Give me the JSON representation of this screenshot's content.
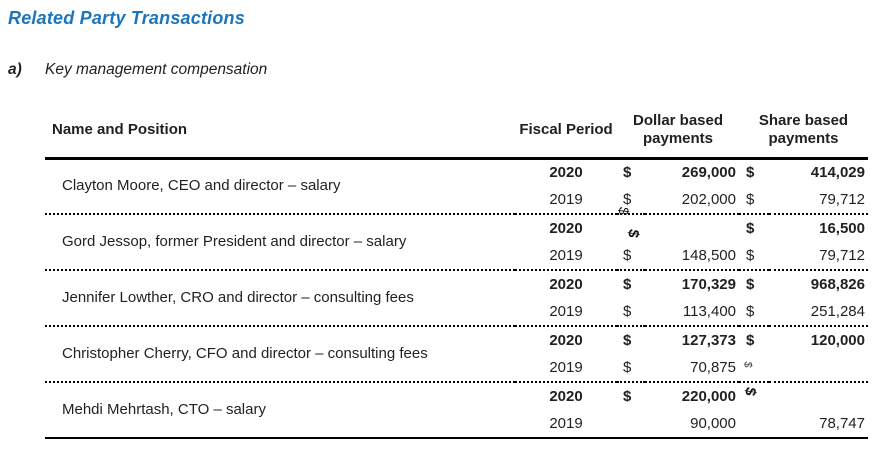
{
  "page": {
    "title": "Related Party Transactions",
    "section_letter": "a)",
    "section_title": "Key management compensation"
  },
  "colors": {
    "title_blue": "#1b75bc",
    "text": "#231f20"
  },
  "table": {
    "headers": {
      "name": "Name and Position",
      "fiscal": "Fiscal Period",
      "dollar_line1": "Dollar based",
      "dollar_line2": "payments",
      "share_line1": "Share based",
      "share_line2": "payments"
    },
    "groups": [
      {
        "name": "Clayton Moore, CEO and director – salary",
        "rows": [
          {
            "year": "2020",
            "dollar_sign": "$",
            "dollar": "269,000",
            "share_sign": "$",
            "share": "414,029"
          },
          {
            "year": "2019",
            "dollar_sign": "$",
            "dollar": "202,000",
            "share_sign": "$",
            "share": "79,712"
          }
        ]
      },
      {
        "name": "Gord Jessop, former President and director – salary",
        "rows": [
          {
            "year": "2020",
            "dollar_sign": "",
            "dollar": "",
            "share_sign": "$",
            "share": "16,500"
          },
          {
            "year": "2019",
            "dollar_sign": "$",
            "dollar": "148,500",
            "share_sign": "$",
            "share": "79,712"
          }
        ]
      },
      {
        "name": "Jennifer Lowther, CRO and director – consulting fees",
        "rows": [
          {
            "year": "2020",
            "dollar_sign": "$",
            "dollar": "170,329",
            "share_sign": "$",
            "share": "968,826"
          },
          {
            "year": "2019",
            "dollar_sign": "$",
            "dollar": "113,400",
            "share_sign": "$",
            "share": "251,284"
          }
        ]
      },
      {
        "name": "Christopher Cherry, CFO and director – consulting fees",
        "rows": [
          {
            "year": "2020",
            "dollar_sign": "$",
            "dollar": "127,373",
            "share_sign": "$",
            "share": "120,000"
          },
          {
            "year": "2019",
            "dollar_sign": "$",
            "dollar": "70,875",
            "share_sign": "",
            "share": ""
          }
        ]
      },
      {
        "name": "Mehdi Mehrtash, CTO – salary",
        "rows": [
          {
            "year": "2020",
            "dollar_sign": "$",
            "dollar": "220,000",
            "share_sign": "",
            "share": ""
          },
          {
            "year": "2019",
            "dollar_sign": "",
            "dollar": "90,000",
            "share_sign": "",
            "share": "78,747"
          }
        ]
      }
    ],
    "artifacts": {
      "glyph": "$"
    }
  }
}
